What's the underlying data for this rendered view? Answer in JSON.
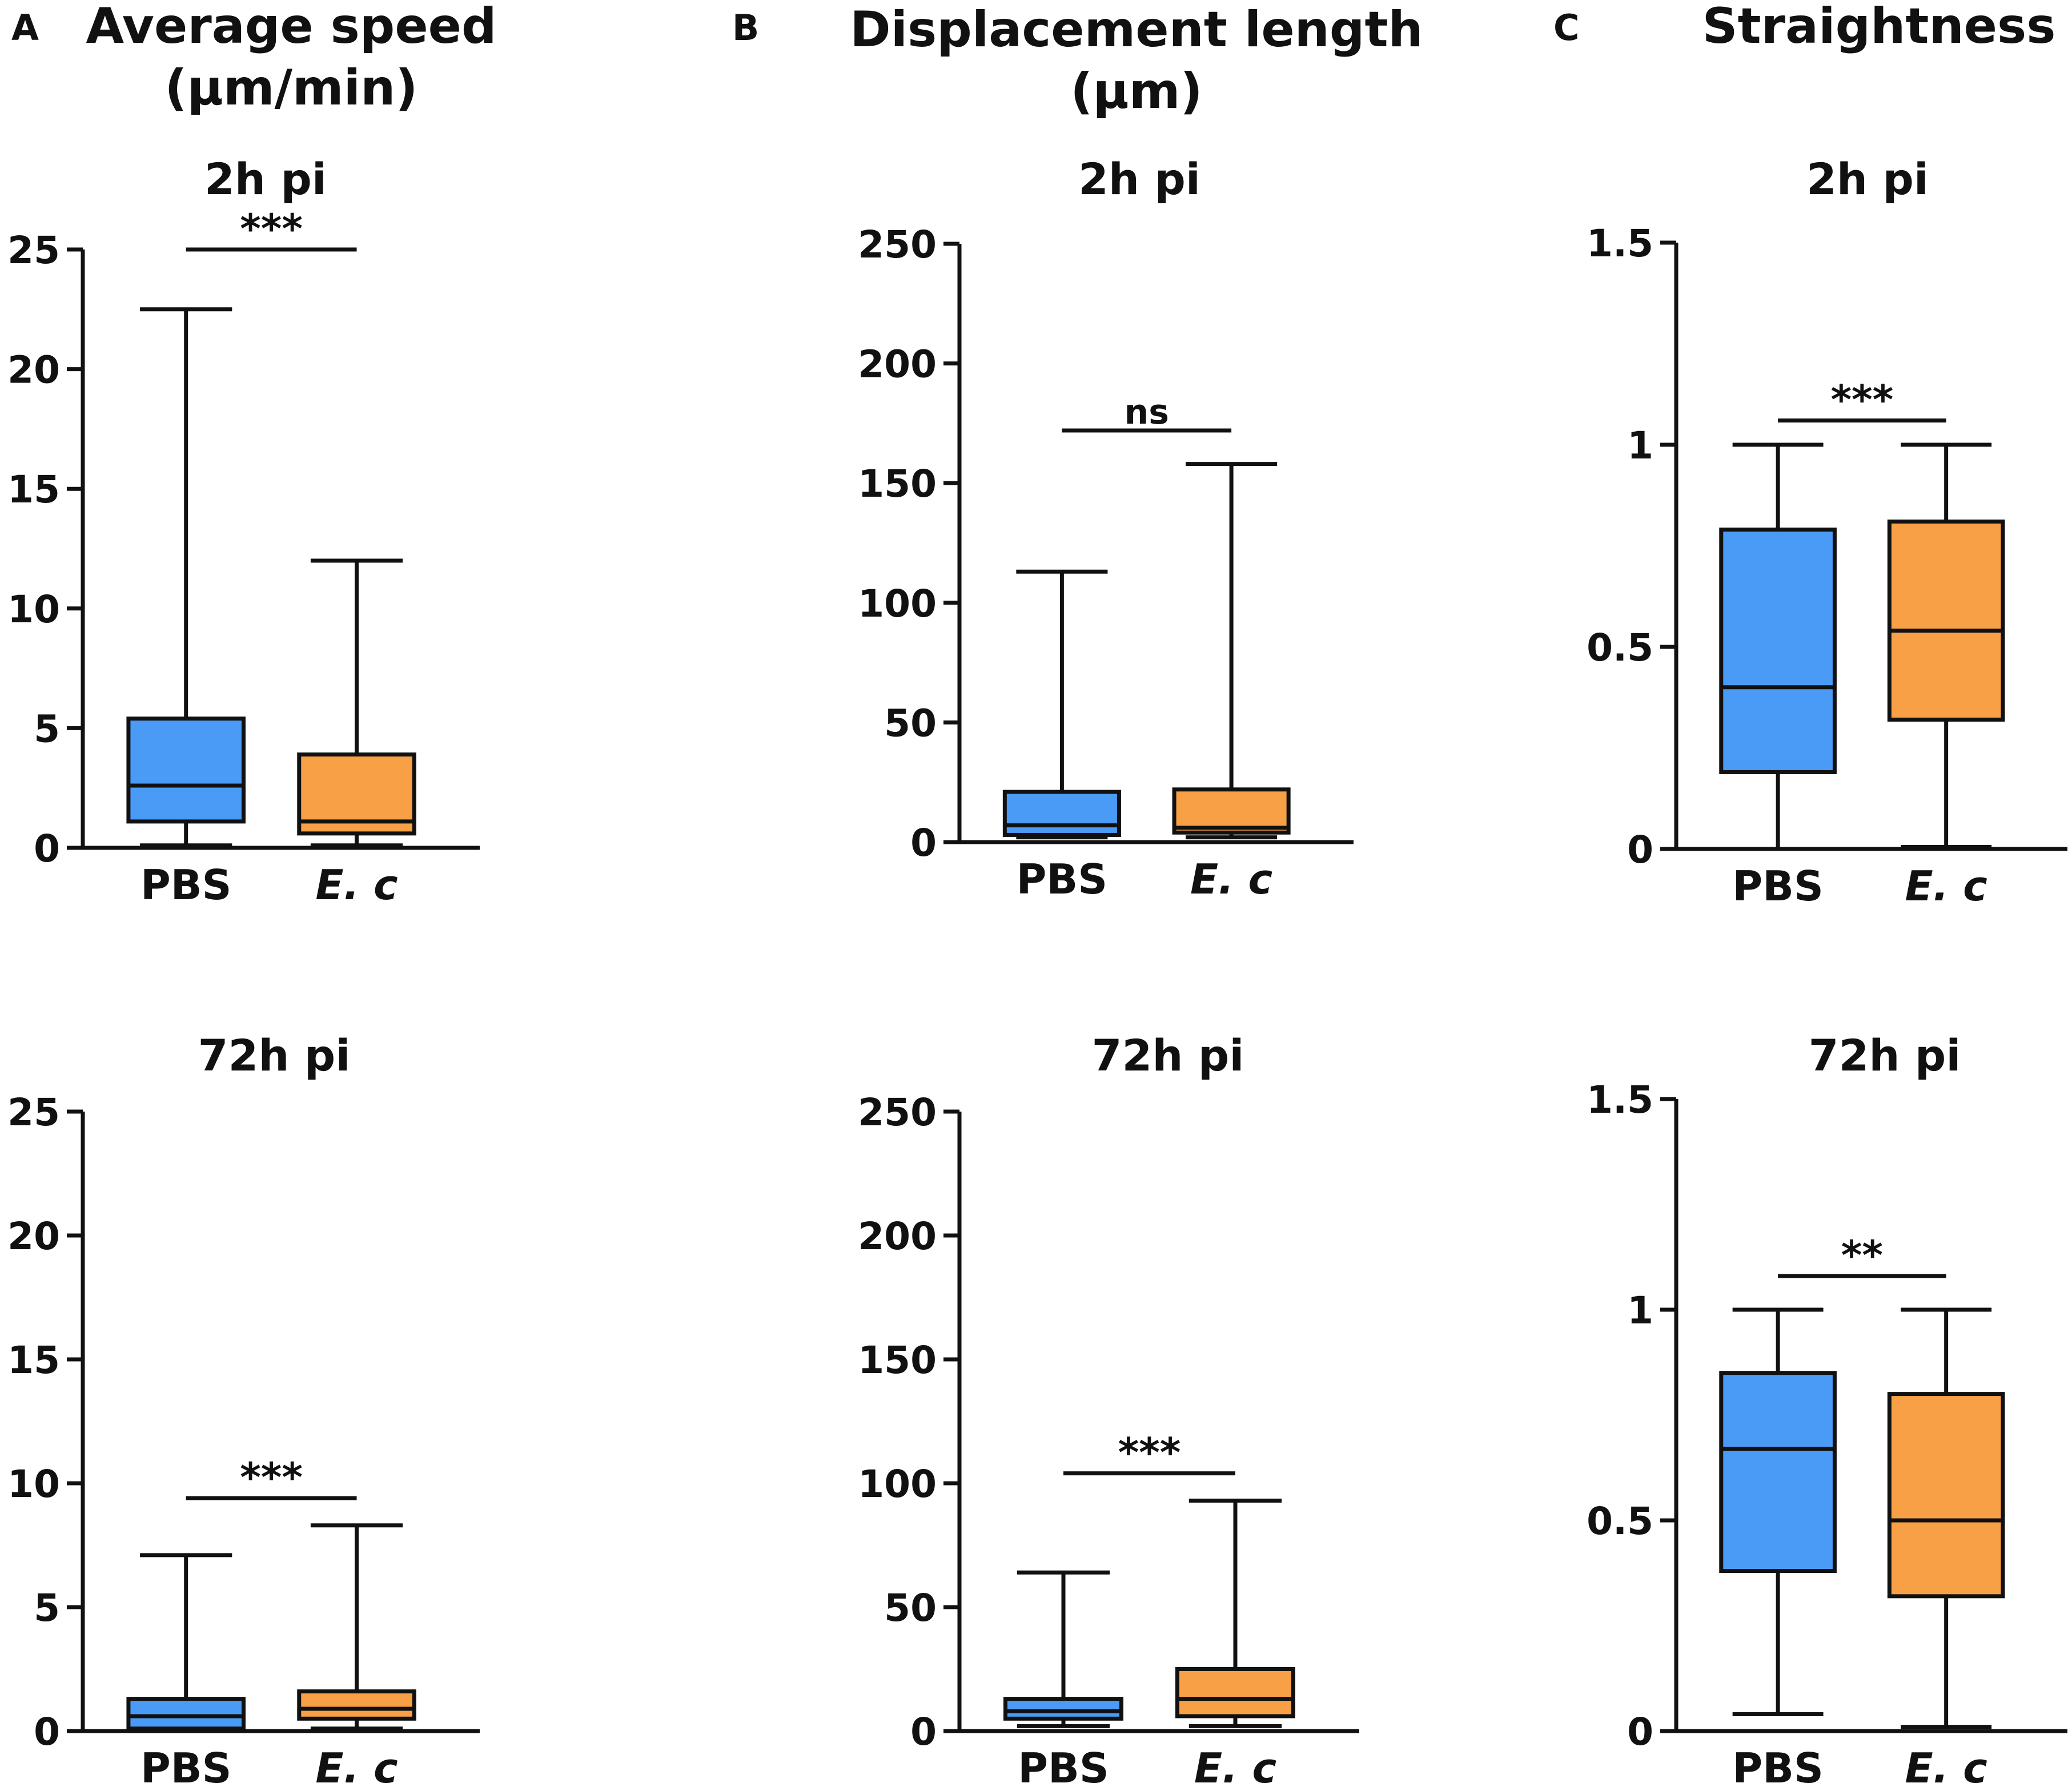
{
  "figure": {
    "panels": [
      {
        "letter": "A",
        "title_line1": "Average speed",
        "title_line2": "(µm/min)"
      },
      {
        "letter": "B",
        "title_line1": "Displacement length",
        "title_line2": "(µm)"
      },
      {
        "letter": "C",
        "title_line1": "Straightness",
        "title_line2": ""
      }
    ]
  },
  "colors": {
    "PBS": "#4A9BF5",
    "E. c": "#F8A045",
    "stroke": "#111111"
  },
  "chart_data": [
    {
      "id": "A-2h",
      "type": "box",
      "title": "2h pi",
      "categories": [
        "PBS",
        "E. c"
      ],
      "yticks": [
        "0",
        "5",
        "10",
        "15",
        "20",
        "25"
      ],
      "tickvals": [
        0,
        5,
        10,
        15,
        20,
        25
      ],
      "ylim": [
        0,
        25
      ],
      "boxes": [
        {
          "name": "PBS",
          "min": 0.1,
          "q1": 1.1,
          "median": 2.6,
          "q3": 5.4,
          "max": 22.5
        },
        {
          "name": "E. c",
          "min": 0.1,
          "q1": 0.6,
          "median": 1.1,
          "q3": 3.9,
          "max": 12.0
        }
      ],
      "significance": "***",
      "sig_y": 25
    },
    {
      "id": "B-2h",
      "type": "box",
      "title": "2h pi",
      "categories": [
        "PBS",
        "E. c"
      ],
      "yticks": [
        "0",
        "50",
        "100",
        "150",
        "200",
        "250"
      ],
      "tickvals": [
        0,
        50,
        100,
        150,
        200,
        250
      ],
      "ylim": [
        0,
        250
      ],
      "boxes": [
        {
          "name": "PBS",
          "min": 2,
          "q1": 3,
          "median": 7,
          "q3": 21,
          "max": 113
        },
        {
          "name": "E. c",
          "min": 2,
          "q1": 4,
          "median": 6,
          "q3": 22,
          "max": 158
        }
      ],
      "significance": "ns",
      "sig_y": 172
    },
    {
      "id": "C-2h",
      "type": "box",
      "title": "2h pi",
      "categories": [
        "PBS",
        "E. c"
      ],
      "yticks": [
        "0",
        "0.5",
        "1",
        "1.5"
      ],
      "tickvals": [
        0,
        0.5,
        1,
        1.5
      ],
      "ylim": [
        0,
        1.5
      ],
      "boxes": [
        {
          "name": "PBS",
          "min": 0.0,
          "q1": 0.19,
          "median": 0.4,
          "q3": 0.79,
          "max": 1.0
        },
        {
          "name": "E. c",
          "min": 0.005,
          "q1": 0.32,
          "median": 0.54,
          "q3": 0.81,
          "max": 1.0
        }
      ],
      "significance": "***",
      "sig_y": 1.06
    },
    {
      "id": "A-72h",
      "type": "box",
      "title": "72h pi",
      "categories": [
        "PBS",
        "E. c"
      ],
      "yticks": [
        "0",
        "5",
        "10",
        "15",
        "20",
        "25"
      ],
      "tickvals": [
        0,
        5,
        10,
        15,
        20,
        25
      ],
      "ylim": [
        0,
        25
      ],
      "boxes": [
        {
          "name": "PBS",
          "min": 0.05,
          "q1": 0.1,
          "median": 0.6,
          "q3": 1.3,
          "max": 7.1
        },
        {
          "name": "E. c",
          "min": 0.1,
          "q1": 0.5,
          "median": 0.9,
          "q3": 1.6,
          "max": 8.3
        }
      ],
      "significance": "***",
      "sig_y": 9.4
    },
    {
      "id": "B-72h",
      "type": "box",
      "title": "72h pi",
      "categories": [
        "PBS",
        "E. c"
      ],
      "yticks": [
        "0",
        "50",
        "100",
        "150",
        "200",
        "250"
      ],
      "tickvals": [
        0,
        50,
        100,
        150,
        200,
        250
      ],
      "ylim": [
        0,
        250
      ],
      "boxes": [
        {
          "name": "PBS",
          "min": 2,
          "q1": 5,
          "median": 8,
          "q3": 13,
          "max": 64
        },
        {
          "name": "E. c",
          "min": 2,
          "q1": 6,
          "median": 13,
          "q3": 25,
          "max": 93
        }
      ],
      "significance": "***",
      "sig_y": 104
    },
    {
      "id": "C-72h",
      "type": "box",
      "title": "72h pi",
      "categories": [
        "PBS",
        "E. c"
      ],
      "yticks": [
        "0",
        "0.5",
        "1",
        "1.5"
      ],
      "tickvals": [
        0,
        0.5,
        1,
        1.5
      ],
      "ylim": [
        0,
        1.5
      ],
      "boxes": [
        {
          "name": "PBS",
          "min": 0.04,
          "q1": 0.38,
          "median": 0.67,
          "q3": 0.85,
          "max": 1.0
        },
        {
          "name": "E. c",
          "min": 0.01,
          "q1": 0.32,
          "median": 0.5,
          "q3": 0.8,
          "max": 1.0
        }
      ],
      "significance": "**",
      "sig_y": 1.08
    }
  ]
}
